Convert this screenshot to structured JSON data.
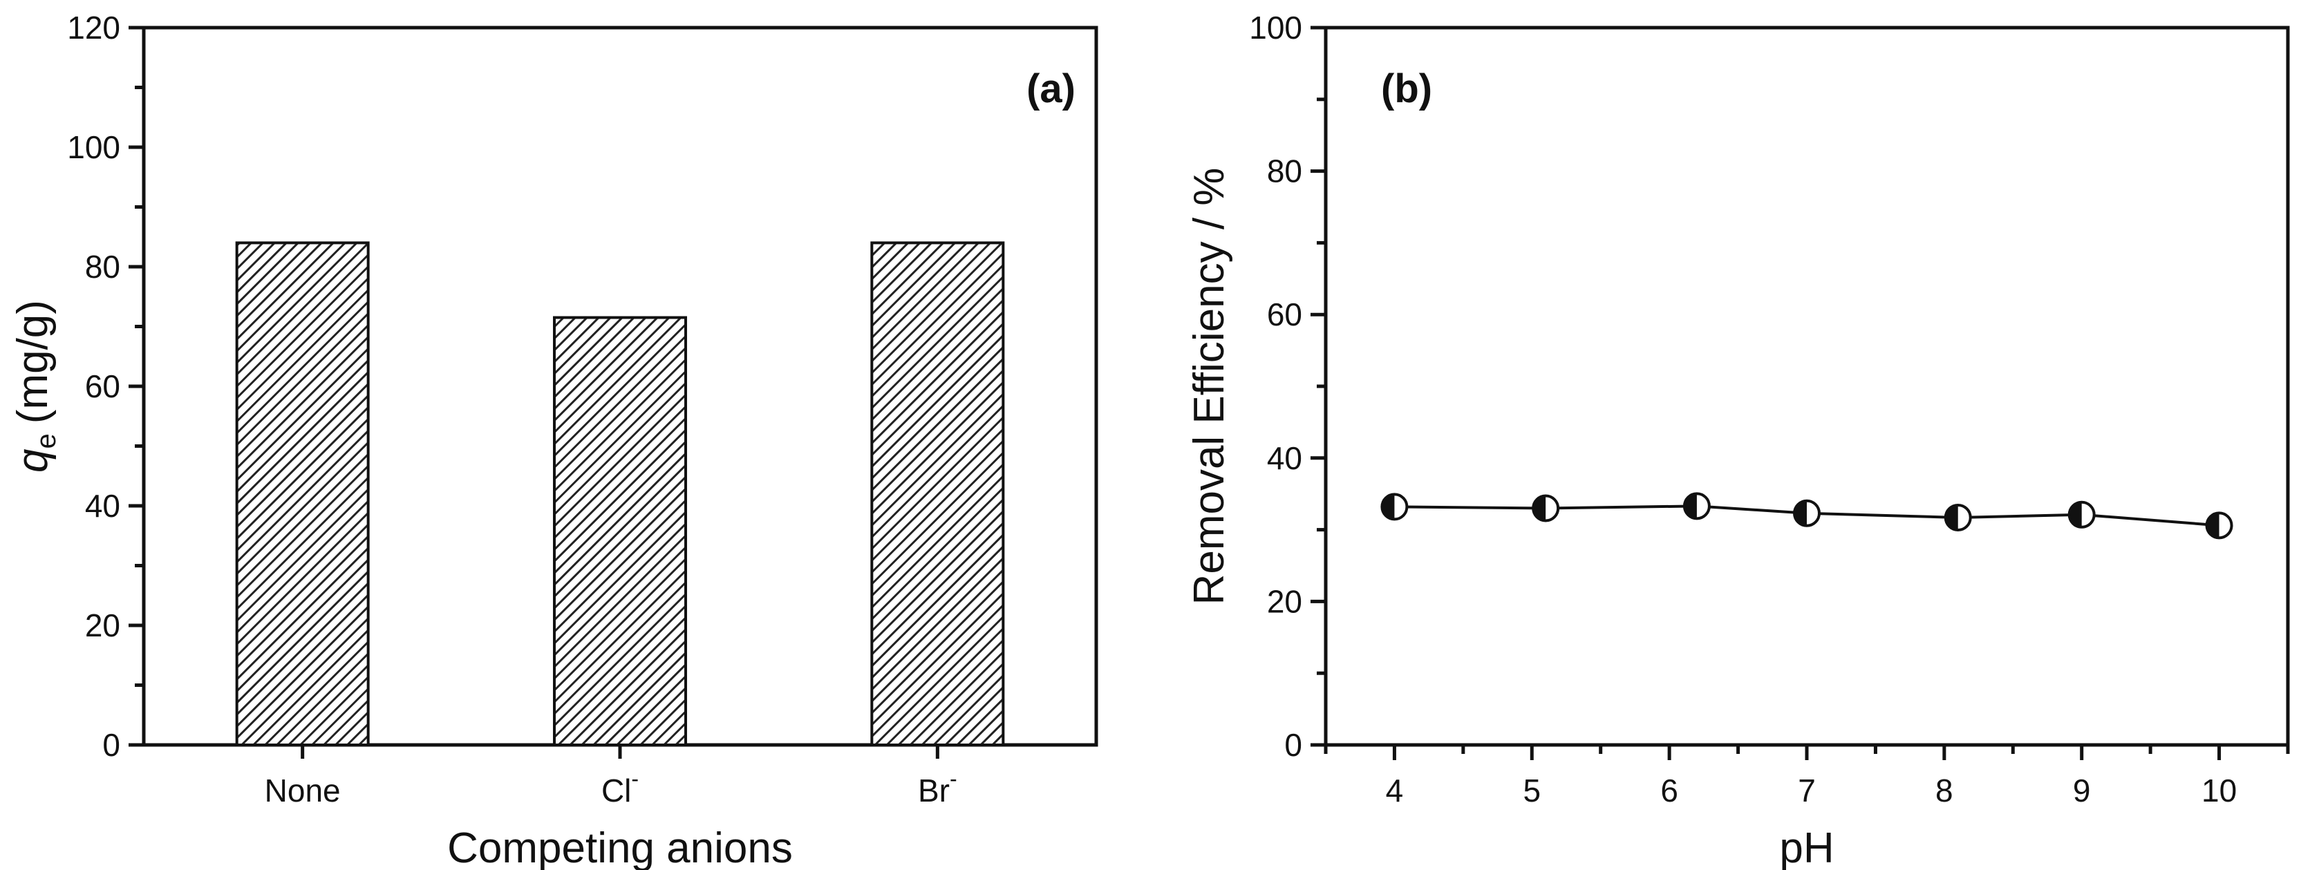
{
  "chart_data": [
    {
      "type": "bar",
      "panel_label": "(a)",
      "categories": [
        {
          "name": "None",
          "sup": ""
        },
        {
          "name": "Cl",
          "sup": "-"
        },
        {
          "name": "Br",
          "sup": "-"
        }
      ],
      "values": [
        84,
        71.5,
        84
      ],
      "xlabel": "Competing anions",
      "ylabel": {
        "var": "q",
        "sub": "e",
        "unit": "(mg/g)"
      },
      "ylim": [
        0,
        120
      ],
      "yticks": [
        0,
        20,
        40,
        60,
        80,
        100,
        120
      ],
      "bar_fill": "diagonal-hatch",
      "bar_color": "#222222"
    },
    {
      "type": "line",
      "panel_label": "(b)",
      "x": [
        4,
        5.1,
        6.2,
        7,
        8.1,
        9,
        10
      ],
      "y": [
        33.2,
        33.0,
        33.3,
        32.3,
        31.7,
        32.1,
        30.6
      ],
      "xlabel": "pH",
      "ylabel": "Removal Efficiency / %",
      "xlim": [
        3.5,
        10.5
      ],
      "ylim": [
        0,
        100
      ],
      "xticks": [
        4,
        5,
        6,
        7,
        8,
        9,
        10
      ],
      "yticks": [
        0,
        20,
        40,
        60,
        80,
        100
      ],
      "marker": "half-filled circle",
      "line_color": "#111111"
    }
  ]
}
